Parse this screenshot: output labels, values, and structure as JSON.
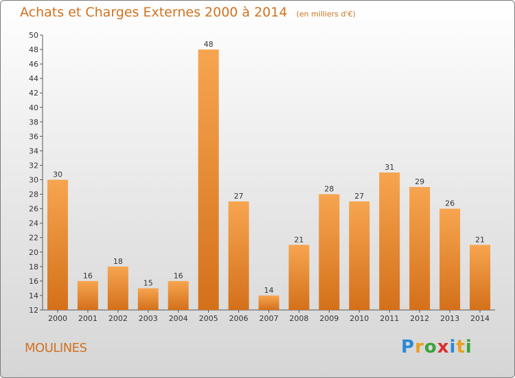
{
  "header": {
    "title": "Achats et Charges Externes 2000 à 2014",
    "unit": "(en milliers d'€)"
  },
  "footer": {
    "city": "MOULINES",
    "logo": "Proxiti"
  },
  "colors": {
    "accent": "#d0711f",
    "bar_light": "#f7a550",
    "bar_dark": "#d87418"
  },
  "chart_data": {
    "type": "bar",
    "title": "Achats et Charges Externes 2000 à 2014",
    "subtitle": "(en milliers d'€)",
    "xlabel": "",
    "ylabel": "",
    "categories": [
      "2000",
      "2001",
      "2002",
      "2003",
      "2004",
      "2005",
      "2006",
      "2007",
      "2008",
      "2009",
      "2010",
      "2011",
      "2012",
      "2013",
      "2014"
    ],
    "values": [
      30,
      16,
      18,
      15,
      16,
      48,
      27,
      14,
      21,
      28,
      27,
      31,
      29,
      26,
      21
    ],
    "ylim": [
      12,
      50
    ],
    "ytick_step": 2,
    "grid": false,
    "legend": "none"
  }
}
